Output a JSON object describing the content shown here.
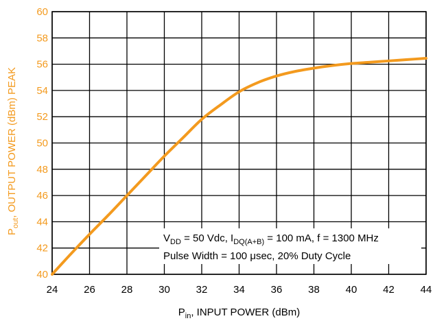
{
  "colors": {
    "curve": "#F39A1E",
    "y_axis_text": "#F39A1E",
    "grid": "#000000",
    "text": "#000000"
  },
  "chart_data": {
    "type": "line",
    "title": "",
    "xlabel": {
      "prefix": "P",
      "sub": "in",
      "rest": ", INPUT POWER (dBm)"
    },
    "ylabel": {
      "prefix": "P",
      "sub": "out",
      "rest": ", OUTPUT POWER (dBm) PEAK"
    },
    "xlim": [
      24,
      44
    ],
    "ylim": [
      40,
      60
    ],
    "xticks": [
      "24",
      "26",
      "28",
      "30",
      "32",
      "34",
      "36",
      "38",
      "40",
      "42",
      "44"
    ],
    "yticks": [
      "40",
      "42",
      "44",
      "46",
      "48",
      "50",
      "52",
      "54",
      "56",
      "58",
      "60"
    ],
    "grid": true,
    "legend": "none",
    "annotation": {
      "line1": {
        "p1": "V",
        "s1": "DD",
        "p2": " = 50 Vdc, I",
        "s2": "DQ(A+B)",
        "p3": " = 100 mA, f = 1300 MHz"
      },
      "line2": "Pulse Width = 100 μsec, 20% Duty Cycle",
      "position": "bottom-right"
    },
    "series": [
      {
        "x": [
          24,
          25,
          26,
          27,
          28,
          29,
          30,
          31,
          32,
          33,
          34,
          35,
          36,
          37,
          38,
          39,
          40,
          41,
          42,
          43,
          44
        ],
        "y": [
          40.0,
          41.55,
          43.05,
          44.5,
          46.0,
          47.5,
          49.0,
          50.4,
          51.8,
          52.9,
          53.9,
          54.6,
          55.1,
          55.45,
          55.7,
          55.9,
          56.05,
          56.15,
          56.25,
          56.35,
          56.45
        ]
      }
    ]
  }
}
